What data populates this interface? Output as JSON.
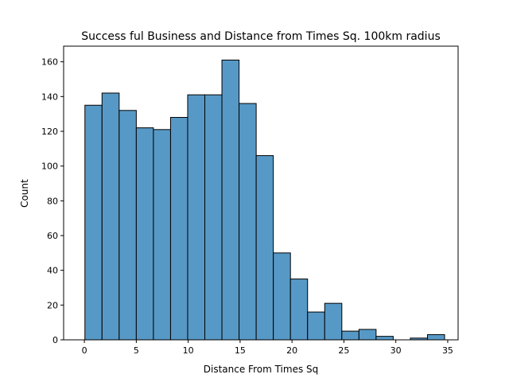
{
  "chart_data": {
    "type": "bar",
    "title": "Success ful Business and Distance from Times Sq. 100km radius",
    "xlabel": "Distance From Times Sq",
    "ylabel": "Count",
    "xlim": [
      -2,
      36
    ],
    "ylim": [
      0,
      169
    ],
    "xticks": [
      0,
      5,
      10,
      15,
      20,
      25,
      30,
      35
    ],
    "yticks": [
      0,
      20,
      40,
      60,
      80,
      100,
      120,
      140,
      160
    ],
    "bin_edges": [
      0.05,
      1.7,
      3.35,
      5.0,
      6.65,
      8.3,
      9.95,
      11.6,
      13.25,
      14.9,
      16.55,
      18.2,
      19.85,
      21.5,
      23.15,
      24.8,
      26.45,
      28.1,
      29.75,
      31.4,
      33.05,
      34.7
    ],
    "values": [
      135,
      142,
      132,
      122,
      121,
      128,
      141,
      141,
      161,
      136,
      106,
      50,
      35,
      16,
      21,
      5,
      6,
      2,
      0,
      1,
      3
    ],
    "grid": false,
    "colors": {
      "bar_fill": "#5799c6",
      "bar_edge": "#000000"
    }
  }
}
